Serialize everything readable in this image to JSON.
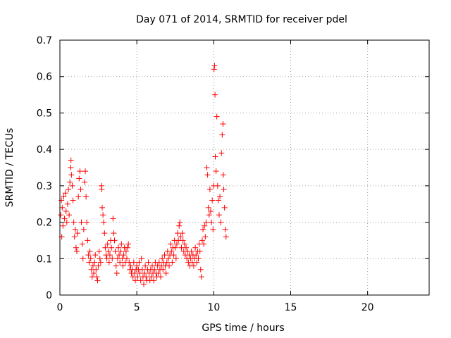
{
  "chart_data": {
    "type": "scatter",
    "title": "Day 071 of 2014, SRMTID for receiver pdel",
    "xlabel": "GPS time / hours",
    "ylabel": "SRMTID / TECUs",
    "xlim": [
      0,
      24
    ],
    "ylim": [
      0,
      0.7
    ],
    "xticks": [
      0,
      5,
      10,
      15,
      20
    ],
    "yticks": [
      0,
      0.1,
      0.2,
      0.3,
      0.4,
      0.5,
      0.6,
      0.7
    ],
    "xtick_labels": [
      "0",
      "5",
      "10",
      "15",
      "20"
    ],
    "ytick_labels": [
      "0",
      "0.1",
      "0.2",
      "0.3",
      "0.4",
      "0.5",
      "0.6",
      "0.7"
    ],
    "grid": true,
    "marker": "+",
    "color": "#ff0000",
    "series": [
      {
        "name": "SRMTID",
        "points": [
          [
            0.05,
            0.22
          ],
          [
            0.1,
            0.26
          ],
          [
            0.12,
            0.16
          ],
          [
            0.15,
            0.24
          ],
          [
            0.2,
            0.19
          ],
          [
            0.25,
            0.27
          ],
          [
            0.3,
            0.21
          ],
          [
            0.35,
            0.28
          ],
          [
            0.4,
            0.23
          ],
          [
            0.45,
            0.2
          ],
          [
            0.5,
            0.25
          ],
          [
            0.55,
            0.29
          ],
          [
            0.6,
            0.22
          ],
          [
            0.65,
            0.31
          ],
          [
            0.7,
            0.35
          ],
          [
            0.72,
            0.37
          ],
          [
            0.75,
            0.33
          ],
          [
            0.8,
            0.3
          ],
          [
            0.85,
            0.26
          ],
          [
            0.9,
            0.2
          ],
          [
            0.95,
            0.16
          ],
          [
            1.0,
            0.18
          ],
          [
            1.05,
            0.13
          ],
          [
            1.1,
            0.12
          ],
          [
            1.15,
            0.17
          ],
          [
            1.2,
            0.27
          ],
          [
            1.25,
            0.32
          ],
          [
            1.3,
            0.34
          ],
          [
            1.35,
            0.29
          ],
          [
            1.4,
            0.2
          ],
          [
            1.45,
            0.14
          ],
          [
            1.5,
            0.1
          ],
          [
            1.55,
            0.18
          ],
          [
            1.6,
            0.31
          ],
          [
            1.65,
            0.34
          ],
          [
            1.7,
            0.27
          ],
          [
            1.75,
            0.2
          ],
          [
            1.8,
            0.15
          ],
          [
            1.85,
            0.11
          ],
          [
            1.9,
            0.09
          ],
          [
            1.95,
            0.12
          ],
          [
            2.0,
            0.1
          ],
          [
            2.05,
            0.07
          ],
          [
            2.1,
            0.05
          ],
          [
            2.15,
            0.08
          ],
          [
            2.2,
            0.06
          ],
          [
            2.25,
            0.09
          ],
          [
            2.3,
            0.11
          ],
          [
            2.35,
            0.07
          ],
          [
            2.4,
            0.05
          ],
          [
            2.45,
            0.04
          ],
          [
            2.5,
            0.08
          ],
          [
            2.55,
            0.12
          ],
          [
            2.6,
            0.1
          ],
          [
            2.65,
            0.09
          ],
          [
            2.7,
            0.3
          ],
          [
            2.72,
            0.29
          ],
          [
            2.75,
            0.24
          ],
          [
            2.8,
            0.22
          ],
          [
            2.85,
            0.2
          ],
          [
            2.9,
            0.17
          ],
          [
            2.95,
            0.13
          ],
          [
            3.0,
            0.11
          ],
          [
            3.05,
            0.1
          ],
          [
            3.1,
            0.14
          ],
          [
            3.15,
            0.12
          ],
          [
            3.2,
            0.09
          ],
          [
            3.25,
            0.11
          ],
          [
            3.3,
            0.15
          ],
          [
            3.35,
            0.13
          ],
          [
            3.4,
            0.1
          ],
          [
            3.45,
            0.21
          ],
          [
            3.5,
            0.17
          ],
          [
            3.55,
            0.15
          ],
          [
            3.6,
            0.12
          ],
          [
            3.65,
            0.08
          ],
          [
            3.7,
            0.06
          ],
          [
            3.75,
            0.1
          ],
          [
            3.8,
            0.13
          ],
          [
            3.85,
            0.11
          ],
          [
            3.9,
            0.09
          ],
          [
            3.95,
            0.12
          ],
          [
            4.0,
            0.14
          ],
          [
            4.05,
            0.1
          ],
          [
            4.1,
            0.08
          ],
          [
            4.15,
            0.11
          ],
          [
            4.2,
            0.13
          ],
          [
            4.25,
            0.09
          ],
          [
            4.3,
            0.12
          ],
          [
            4.35,
            0.1
          ],
          [
            4.4,
            0.13
          ],
          [
            4.45,
            0.14
          ],
          [
            4.5,
            0.09
          ],
          [
            4.55,
            0.07
          ],
          [
            4.6,
            0.08
          ],
          [
            4.65,
            0.06
          ],
          [
            4.7,
            0.07
          ],
          [
            4.75,
            0.05
          ],
          [
            4.8,
            0.09
          ],
          [
            4.85,
            0.06
          ],
          [
            4.9,
            0.04
          ],
          [
            4.95,
            0.07
          ],
          [
            5.0,
            0.08
          ],
          [
            5.05,
            0.05
          ],
          [
            5.1,
            0.07
          ],
          [
            5.15,
            0.09
          ],
          [
            5.2,
            0.06
          ],
          [
            5.25,
            0.04
          ],
          [
            5.3,
            0.1
          ],
          [
            5.35,
            0.07
          ],
          [
            5.4,
            0.05
          ],
          [
            5.45,
            0.03
          ],
          [
            5.5,
            0.06
          ],
          [
            5.55,
            0.08
          ],
          [
            5.6,
            0.05
          ],
          [
            5.65,
            0.04
          ],
          [
            5.7,
            0.07
          ],
          [
            5.75,
            0.09
          ],
          [
            5.8,
            0.06
          ],
          [
            5.85,
            0.04
          ],
          [
            5.9,
            0.07
          ],
          [
            5.95,
            0.05
          ],
          [
            6.0,
            0.08
          ],
          [
            6.05,
            0.06
          ],
          [
            6.1,
            0.04
          ],
          [
            6.15,
            0.07
          ],
          [
            6.2,
            0.09
          ],
          [
            6.25,
            0.06
          ],
          [
            6.3,
            0.05
          ],
          [
            6.35,
            0.08
          ],
          [
            6.4,
            0.06
          ],
          [
            6.45,
            0.09
          ],
          [
            6.5,
            0.07
          ],
          [
            6.55,
            0.05
          ],
          [
            6.6,
            0.08
          ],
          [
            6.65,
            0.1
          ],
          [
            6.7,
            0.07
          ],
          [
            6.75,
            0.09
          ],
          [
            6.8,
            0.11
          ],
          [
            6.85,
            0.08
          ],
          [
            6.9,
            0.06
          ],
          [
            6.95,
            0.09
          ],
          [
            7.0,
            0.12
          ],
          [
            7.05,
            0.1
          ],
          [
            7.1,
            0.08
          ],
          [
            7.15,
            0.11
          ],
          [
            7.2,
            0.14
          ],
          [
            7.25,
            0.12
          ],
          [
            7.3,
            0.09
          ],
          [
            7.35,
            0.13
          ],
          [
            7.4,
            0.11
          ],
          [
            7.45,
            0.15
          ],
          [
            7.5,
            0.13
          ],
          [
            7.55,
            0.1
          ],
          [
            7.6,
            0.14
          ],
          [
            7.65,
            0.17
          ],
          [
            7.7,
            0.15
          ],
          [
            7.75,
            0.19
          ],
          [
            7.8,
            0.2
          ],
          [
            7.85,
            0.16
          ],
          [
            7.9,
            0.13
          ],
          [
            7.95,
            0.17
          ],
          [
            8.0,
            0.15
          ],
          [
            8.05,
            0.12
          ],
          [
            8.1,
            0.14
          ],
          [
            8.15,
            0.11
          ],
          [
            8.2,
            0.13
          ],
          [
            8.25,
            0.1
          ],
          [
            8.3,
            0.12
          ],
          [
            8.35,
            0.09
          ],
          [
            8.4,
            0.11
          ],
          [
            8.45,
            0.08
          ],
          [
            8.5,
            0.1
          ],
          [
            8.55,
            0.12
          ],
          [
            8.6,
            0.09
          ],
          [
            8.65,
            0.11
          ],
          [
            8.7,
            0.08
          ],
          [
            8.75,
            0.1
          ],
          [
            8.8,
            0.13
          ],
          [
            8.85,
            0.11
          ],
          [
            8.9,
            0.09
          ],
          [
            8.95,
            0.12
          ],
          [
            9.0,
            0.1
          ],
          [
            9.05,
            0.14
          ],
          [
            9.1,
            0.12
          ],
          [
            9.15,
            0.07
          ],
          [
            9.2,
            0.05
          ],
          [
            9.25,
            0.15
          ],
          [
            9.3,
            0.18
          ],
          [
            9.35,
            0.14
          ],
          [
            9.4,
            0.19
          ],
          [
            9.45,
            0.16
          ],
          [
            9.5,
            0.2
          ],
          [
            9.55,
            0.35
          ],
          [
            9.6,
            0.33
          ],
          [
            9.65,
            0.24
          ],
          [
            9.7,
            0.22
          ],
          [
            9.75,
            0.29
          ],
          [
            9.8,
            0.23
          ],
          [
            9.85,
            0.2
          ],
          [
            9.9,
            0.26
          ],
          [
            9.95,
            0.18
          ],
          [
            10.0,
            0.3
          ],
          [
            10.02,
            0.62
          ],
          [
            10.05,
            0.63
          ],
          [
            10.08,
            0.55
          ],
          [
            10.1,
            0.38
          ],
          [
            10.15,
            0.34
          ],
          [
            10.2,
            0.49
          ],
          [
            10.25,
            0.3
          ],
          [
            10.3,
            0.26
          ],
          [
            10.35,
            0.22
          ],
          [
            10.4,
            0.27
          ],
          [
            10.45,
            0.2
          ],
          [
            10.5,
            0.39
          ],
          [
            10.55,
            0.44
          ],
          [
            10.6,
            0.47
          ],
          [
            10.62,
            0.33
          ],
          [
            10.65,
            0.29
          ],
          [
            10.7,
            0.24
          ],
          [
            10.75,
            0.18
          ],
          [
            10.8,
            0.16
          ]
        ]
      }
    ]
  }
}
